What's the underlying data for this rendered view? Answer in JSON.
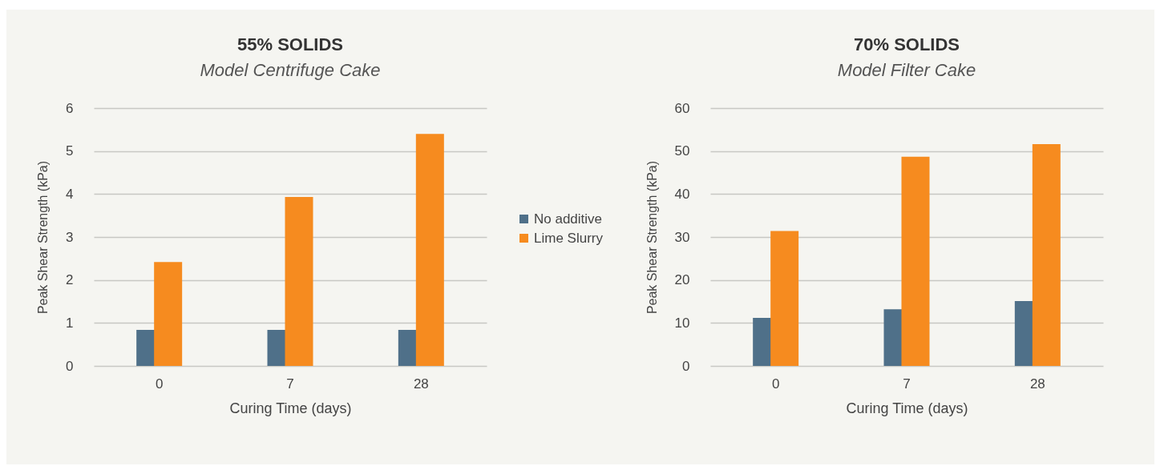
{
  "chart_data": [
    {
      "type": "bar",
      "title": "55% SOLIDS",
      "subtitle": "Model Centrifuge Cake",
      "xlabel": "Curing Time (days)",
      "ylabel": "Peak Shear Strength (kPa)",
      "categories": [
        "0",
        "7",
        "28"
      ],
      "series": [
        {
          "name": "No additive",
          "color": "#4f7089",
          "values": [
            0.84,
            0.84,
            0.84
          ]
        },
        {
          "name": "Lime Slurry",
          "color": "#f68b1f",
          "values": [
            2.42,
            3.93,
            5.4
          ]
        }
      ],
      "ylim": [
        0,
        6
      ],
      "yticks": [
        0,
        1,
        2,
        3,
        4,
        5,
        6
      ],
      "grid": "y",
      "legend": "right"
    },
    {
      "type": "bar",
      "title": "70% SOLIDS",
      "subtitle": "Model Filter Cake",
      "xlabel": "Curing Time (days)",
      "ylabel": "Peak Shear Strength (kPa)",
      "categories": [
        "0",
        "7",
        "28"
      ],
      "series": [
        {
          "color": "#4f7089",
          "values": [
            11.2,
            13.2,
            15.1
          ]
        },
        {
          "color": "#f68b1f",
          "values": [
            31.4,
            48.7,
            51.6
          ]
        }
      ],
      "ylim": [
        0,
        60
      ],
      "yticks": [
        0,
        10,
        20,
        30,
        40,
        50,
        60
      ],
      "grid": "y"
    }
  ]
}
